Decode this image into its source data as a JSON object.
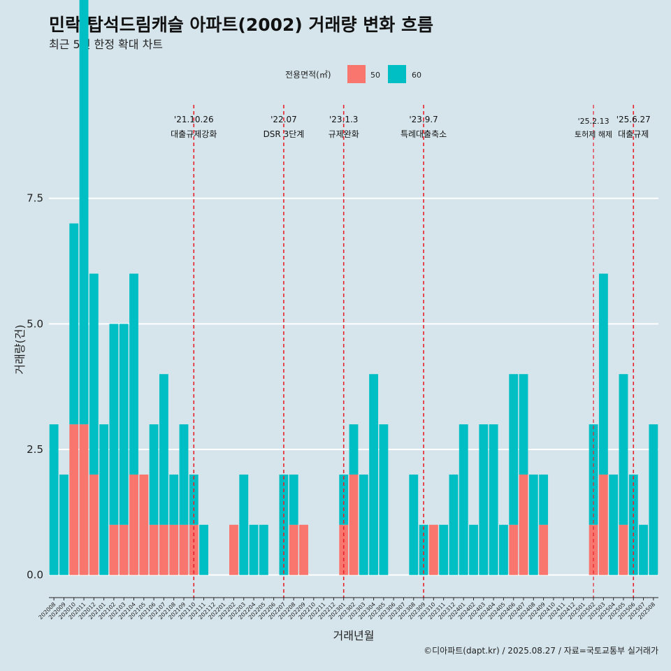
{
  "chart_data": {
    "type": "bar",
    "title": "민락 탑석드림캐슬 아파트(2002) 거래량 변화 흐름",
    "subtitle": "최근 5년 한정 확대 차트",
    "xlabel": "거래년월",
    "ylabel": "거래량(건)",
    "ylim": [
      -0.45,
      9.5
    ],
    "yticks": [
      0,
      2.5,
      5,
      7.5
    ],
    "ytick_labels": [
      "0.0",
      "2.5",
      "5.0",
      "7.5"
    ],
    "grid": true,
    "legend": {
      "title": "전용면적(㎡)",
      "position": "top"
    },
    "categories": [
      "202008",
      "202009",
      "202010",
      "202011",
      "202012",
      "202101",
      "202102",
      "202103",
      "202104",
      "202105",
      "202106",
      "202107",
      "202108",
      "202109",
      "202110",
      "202111",
      "202112",
      "202201",
      "202202",
      "202203",
      "202204",
      "202205",
      "202206",
      "202207",
      "202208",
      "202209",
      "202210",
      "202211",
      "202212",
      "202301",
      "202302",
      "202303",
      "202304",
      "202305",
      "202306",
      "202307",
      "202308",
      "202309",
      "202310",
      "202311",
      "202312",
      "202401",
      "202402",
      "202403",
      "202404",
      "202405",
      "202406",
      "202407",
      "202408",
      "202409",
      "202410",
      "202411",
      "202412",
      "202501",
      "202502",
      "202503",
      "202504",
      "202505",
      "202506",
      "202507",
      "202508"
    ],
    "series": [
      {
        "name": "50",
        "color": "#f8766d",
        "values": [
          0,
          0,
          3,
          3,
          2,
          0,
          1,
          1,
          2,
          2,
          1,
          1,
          1,
          1,
          1,
          0,
          0,
          0,
          1,
          0,
          0,
          0,
          0,
          0,
          1,
          1,
          0,
          0,
          0,
          1,
          2,
          0,
          0,
          0,
          0,
          0,
          0,
          0,
          1,
          0,
          0,
          0,
          0,
          0,
          0,
          0,
          1,
          2,
          0,
          1,
          0,
          0,
          0,
          0,
          1,
          2,
          0,
          1,
          0,
          0,
          0
        ]
      },
      {
        "name": "60",
        "color": "#00bfc4",
        "values": [
          3,
          2,
          4,
          9,
          4,
          3,
          4,
          4,
          4,
          0,
          2,
          3,
          1,
          2,
          1,
          1,
          0,
          0,
          0,
          2,
          1,
          1,
          0,
          2,
          1,
          0,
          0,
          0,
          0,
          1,
          1,
          2,
          4,
          3,
          0,
          0,
          2,
          1,
          0,
          1,
          2,
          3,
          1,
          3,
          3,
          1,
          3,
          2,
          2,
          1,
          0,
          0,
          0,
          0,
          2,
          4,
          2,
          3,
          2,
          1,
          3
        ]
      }
    ],
    "annotations": [
      {
        "category": "202110",
        "date": "'21.10.26",
        "label": "대출규제강화"
      },
      {
        "category": "202207",
        "date": "'22.07",
        "label": "DSR 3단계"
      },
      {
        "category": "202301",
        "date": "'23.1.3",
        "label": "규제완화"
      },
      {
        "category": "202309",
        "date": "'23.9.7",
        "label": "특례대출축소"
      },
      {
        "category": "202502",
        "date": "'25.2.13",
        "label": "토허제 해제"
      },
      {
        "category": "202506",
        "date": "'25.6.27",
        "label": "대출규제"
      }
    ]
  },
  "caption": "©디아파트(dapt.kr) / 2025.08.27 / 자료=국토교통부 실거래가"
}
